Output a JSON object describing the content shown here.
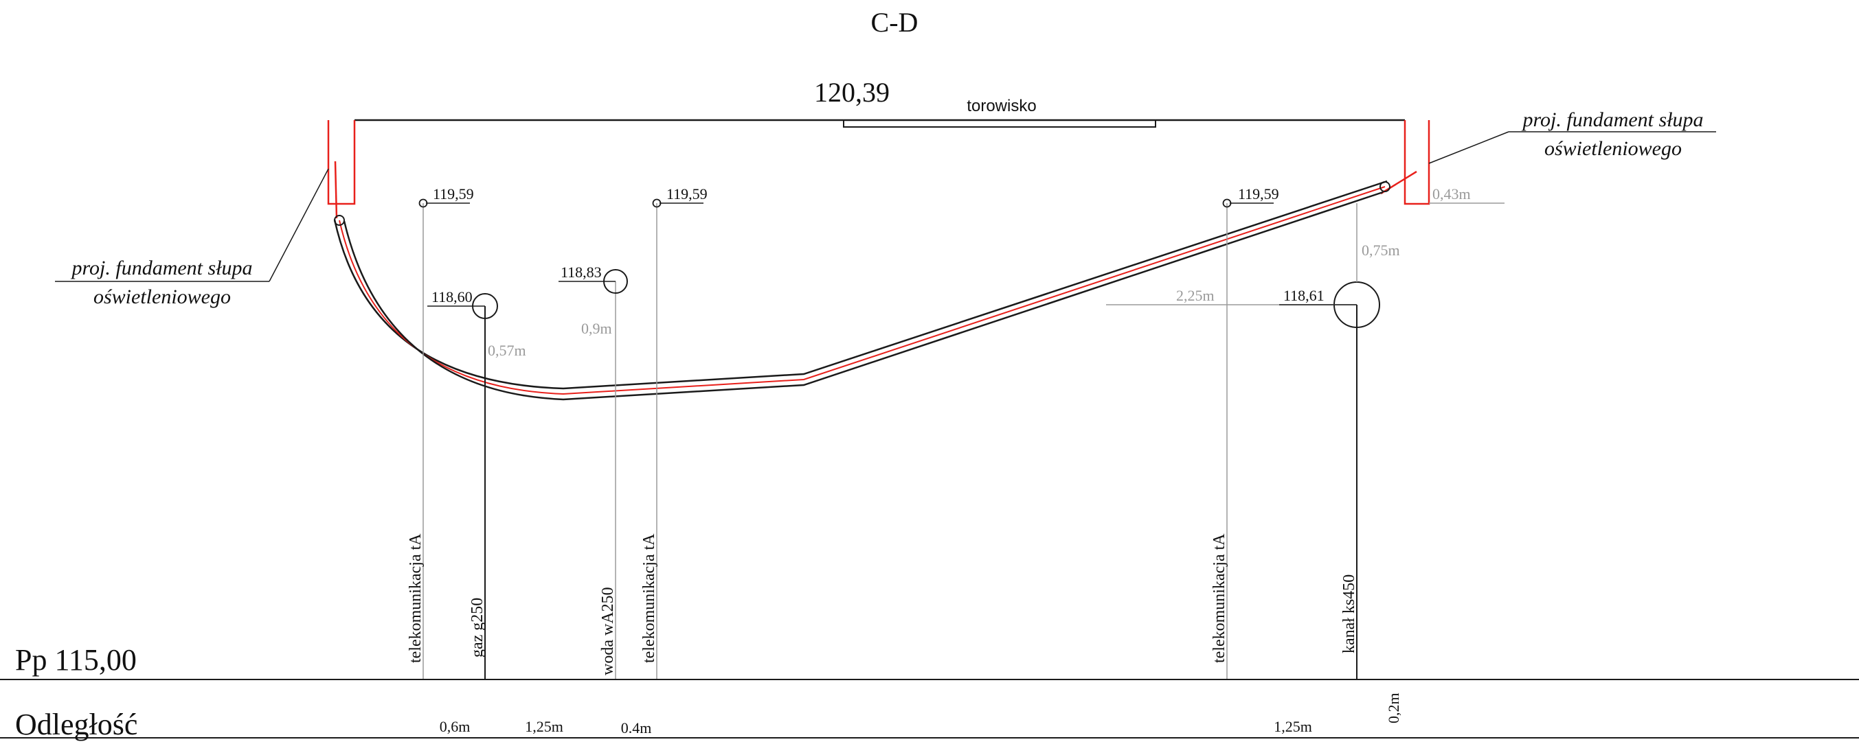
{
  "title": "C-D",
  "surface": {
    "elevation": "120,39",
    "track_label": "torowisko"
  },
  "foundation_labels": {
    "left": {
      "line1": "proj. fundament słupa",
      "line2": "oświetleniowego"
    },
    "right": {
      "line1": "proj. fundament słupa",
      "line2": "oświetleniowego"
    }
  },
  "top_elevations": [
    "119,59",
    "119,59",
    "119,59"
  ],
  "pipe_elevations": {
    "gas": "118,60",
    "water": "118,83",
    "sewer": "118,61"
  },
  "depth_dimensions": {
    "foundation_right": "0,43m",
    "sewer_depth": "0,75m",
    "sewer_offset": "2,25m",
    "water_depth": "0,9m",
    "gas_depth": "0,57m"
  },
  "utilities": [
    "telekomunikacja tA",
    "gaz g250",
    "woda wA250",
    "telekomunikacja tA",
    "telekomunikacja tA",
    "kanał ks450"
  ],
  "reference_level": "Pp 115,00",
  "distance_label": "Odległość",
  "distances": [
    "0,6m",
    "1,25m",
    "0.4m",
    "1,25m",
    "0,2m"
  ],
  "colors": {
    "line": "#1a1a1a",
    "dimension": "#9a9a9a",
    "cable": "#e8201b"
  }
}
